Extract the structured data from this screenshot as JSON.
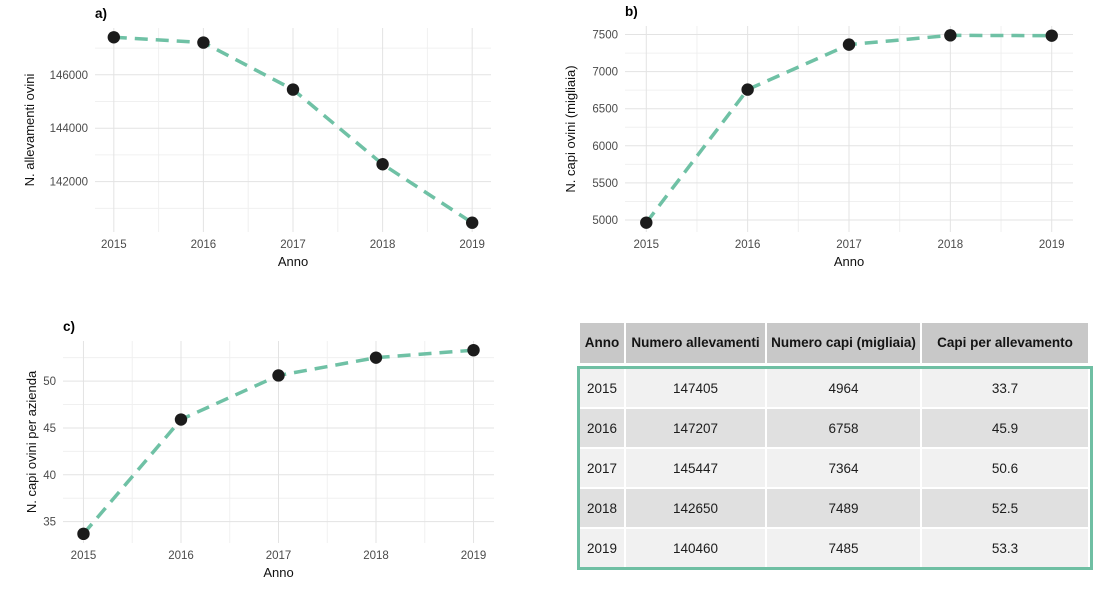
{
  "colors": {
    "line": "#6fc1a5",
    "point": "#1b1b1b",
    "grid_major": "#e3e3e3",
    "grid_minor": "#f0f0f0",
    "tick_text": "#4b4b4b",
    "title_text": "#111111"
  },
  "chart_data": [
    {
      "type": "line",
      "title": "a)",
      "xlabel": "Anno",
      "ylabel": "N. allevamenti ovini",
      "x": [
        2015,
        2016,
        2017,
        2018,
        2019
      ],
      "values": [
        147405,
        147207,
        145447,
        142650,
        140460
      ],
      "xticks": [
        2015,
        2016,
        2017,
        2018,
        2019
      ],
      "xminor": [
        2015.5,
        2016.5,
        2017.5,
        2018.5
      ],
      "yticks": [
        142000,
        144000,
        146000
      ],
      "yminor": [
        141000,
        143000,
        145000,
        147000
      ],
      "xlim": [
        2014.79,
        2019.21
      ],
      "ylim": [
        140113,
        147752
      ],
      "grid": true,
      "legend": false,
      "line_style": "dashed",
      "margins": {
        "l": 95,
        "r": 67,
        "t": 28,
        "b": 48
      },
      "ytitle_x": 34
    },
    {
      "type": "line",
      "title": "b)",
      "xlabel": "Anno",
      "ylabel": "N. capi ovini (migliaia)",
      "x": [
        2015,
        2016,
        2017,
        2018,
        2019
      ],
      "values": [
        4964,
        6758,
        7364,
        7489,
        7485
      ],
      "xticks": [
        2015,
        2016,
        2017,
        2018,
        2019
      ],
      "xminor": [
        2015.5,
        2016.5,
        2017.5,
        2018.5
      ],
      "yticks": [
        5000,
        5500,
        6000,
        6500,
        7000,
        7500
      ],
      "yminor": [
        5250,
        5750,
        6250,
        6750,
        7250
      ],
      "xlim": [
        2014.79,
        2019.21
      ],
      "ylim": [
        4838,
        7615
      ],
      "grid": true,
      "legend": false,
      "line_style": "dashed",
      "margins": {
        "l": 67,
        "r": 43,
        "t": 26,
        "b": 48
      },
      "ytitle_x": 17
    },
    {
      "type": "line",
      "title": "c)",
      "xlabel": "Anno",
      "ylabel": "N. capi ovini per azienda",
      "x": [
        2015,
        2016,
        2017,
        2018,
        2019
      ],
      "values": [
        33.7,
        45.9,
        50.6,
        52.5,
        53.3
      ],
      "xticks": [
        2015,
        2016,
        2017,
        2018,
        2019
      ],
      "xminor": [
        2015.5,
        2016.5,
        2017.5,
        2018.5
      ],
      "yticks": [
        35,
        40,
        45,
        50
      ],
      "yminor": [
        37.5,
        42.5,
        47.5,
        52.5
      ],
      "xlim": [
        2014.79,
        2019.21
      ],
      "ylim": [
        32.72,
        54.28
      ],
      "grid": true,
      "legend": false,
      "line_style": "dashed",
      "margins": {
        "l": 63,
        "r": 64,
        "t": 41,
        "b": 59
      },
      "ytitle_x": 36
    }
  ],
  "table": {
    "columns": [
      "Anno",
      "Numero allevamenti",
      "Numero capi (migliaia)",
      "Capi per allevamento"
    ],
    "rows": [
      [
        "2015",
        "147405",
        "4964",
        "33.7"
      ],
      [
        "2016",
        "147207",
        "6758",
        "45.9"
      ],
      [
        "2017",
        "145447",
        "7364",
        "50.6"
      ],
      [
        "2018",
        "142650",
        "7489",
        "52.5"
      ],
      [
        "2019",
        "140460",
        "7485",
        "53.3"
      ]
    ],
    "header_bg": "#c8c8c8",
    "row_bg_odd": "#f1f1f1",
    "row_bg_even": "#e0e0e0",
    "border_color": "#6fbfa3"
  }
}
